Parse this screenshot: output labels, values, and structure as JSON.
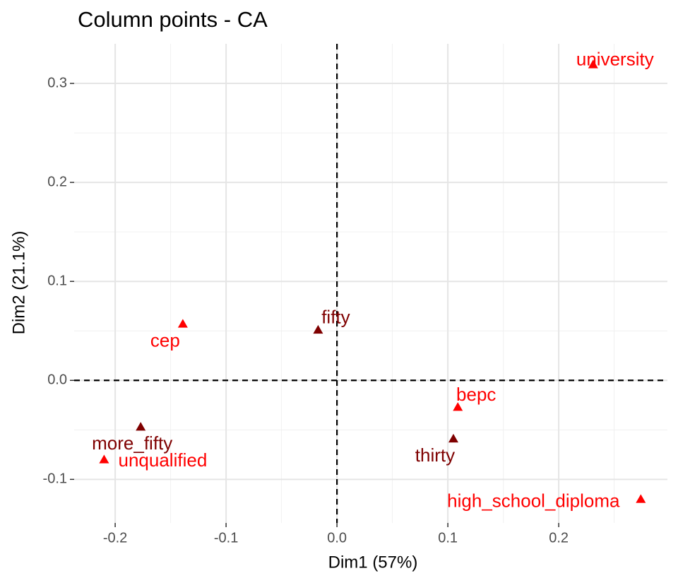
{
  "chart_data": {
    "type": "scatter",
    "title": "Column points - CA",
    "x_label": "Dim1 (57%)",
    "y_label": "Dim2 (21.1%)",
    "xlim": [
      -0.237,
      0.298
    ],
    "ylim": [
      -0.144,
      0.34
    ],
    "xticks": [
      -0.2,
      -0.1,
      {
        "value": 0,
        "label": "0.0"
      },
      0.1,
      0.2
    ],
    "yticks": [
      -0.1,
      {
        "value": 0,
        "label": "0.0"
      },
      0.1,
      0.2,
      0.3
    ],
    "grid": true,
    "points": [
      {
        "label": "university",
        "x": 0.231,
        "y": 0.319,
        "color": "#ff0000"
      },
      {
        "label": "cep",
        "x": -0.139,
        "y": 0.057,
        "color": "#ff0000"
      },
      {
        "label": "fifty",
        "x": -0.017,
        "y": 0.051,
        "color": "#7f0000"
      },
      {
        "label": "bepc",
        "x": 0.109,
        "y": -0.027,
        "color": "#ff0000"
      },
      {
        "label": "thirty",
        "x": 0.105,
        "y": -0.059,
        "color": "#7f0000"
      },
      {
        "label": "more_fifty",
        "x": -0.177,
        "y": -0.047,
        "color": "#7f0000"
      },
      {
        "label": "unqualified",
        "x": -0.21,
        "y": -0.08,
        "color": "#ff0000"
      },
      {
        "label": "high_school_diploma",
        "x": 0.274,
        "y": -0.12,
        "color": "#ff0000"
      }
    ]
  }
}
